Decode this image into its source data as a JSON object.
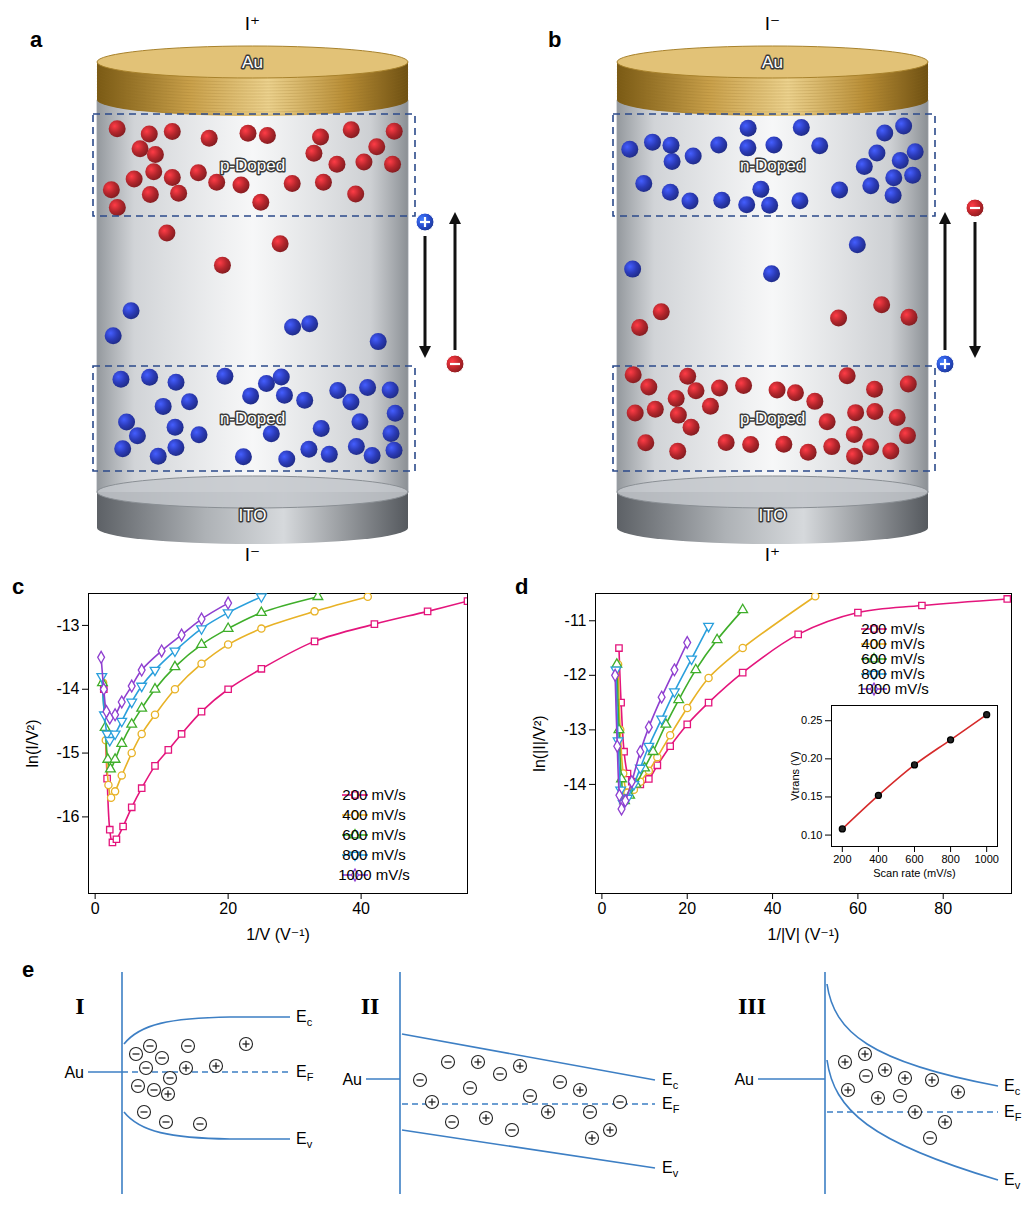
{
  "figure": {
    "a": {
      "label": "a",
      "top_terminal": "I⁺",
      "bottom_terminal": "I⁻",
      "top_electrode": "Au",
      "bottom_electrode": "ITO",
      "top_layer": {
        "text": "p-Doped",
        "color": "#b3262c"
      },
      "bottom_layer": {
        "text": "n-Doped",
        "color": "#2b3bb8"
      }
    },
    "b": {
      "label": "b",
      "top_terminal": "I⁻",
      "bottom_terminal": "I⁺",
      "top_electrode": "Au",
      "bottom_electrode": "ITO",
      "top_layer": {
        "text": "n-Doped",
        "color": "#2b3bb8"
      },
      "bottom_layer": {
        "text": "p-Doped",
        "color": "#b3262c"
      }
    },
    "e": {
      "label": "e",
      "diagrams": [
        {
          "label": "I",
          "metal": "Au",
          "levels": [
            "Ec",
            "EF",
            "Ev"
          ]
        },
        {
          "label": "II",
          "metal": "Au",
          "levels": [
            "Ec",
            "EF",
            "Ev"
          ]
        },
        {
          "label": "III",
          "metal": "Au",
          "levels": [
            "Ec",
            "EF",
            "Ev"
          ]
        }
      ]
    }
  },
  "chart_data": [
    {
      "panel": "c",
      "type": "line",
      "x_label": "1/V (V⁻¹)",
      "y_label": "ln(I/V²)",
      "xlim": [
        -1,
        56
      ],
      "xticks": [
        0,
        20,
        40
      ],
      "ylim": [
        -17.2,
        -12.5
      ],
      "yticks": [
        -16,
        -15,
        -14,
        -13
      ],
      "grid": false,
      "legend": "bottom-right",
      "series": [
        {
          "name": "200 mV/s",
          "color": "#e4157c",
          "marker": "square",
          "x": [
            1.3,
            1.8,
            2.2,
            2.6,
            3.2,
            4.2,
            5.5,
            7,
            9,
            11,
            13,
            16,
            20,
            25,
            33,
            42,
            50,
            56
          ],
          "values": [
            -14.0,
            -15.4,
            -16.2,
            -16.4,
            -16.35,
            -16.15,
            -15.85,
            -15.55,
            -15.2,
            -14.95,
            -14.7,
            -14.35,
            -14.0,
            -13.68,
            -13.25,
            -12.98,
            -12.78,
            -12.62
          ]
        },
        {
          "name": "400 mV/s",
          "color": "#e8b226",
          "marker": "circle",
          "x": [
            1.2,
            1.6,
            2.0,
            2.4,
            3,
            4,
            5.5,
            7,
            9,
            12,
            16,
            20,
            25,
            33,
            41
          ],
          "values": [
            -13.9,
            -14.8,
            -15.5,
            -15.7,
            -15.6,
            -15.35,
            -15.0,
            -14.7,
            -14.4,
            -14.0,
            -13.6,
            -13.3,
            -13.05,
            -12.78,
            -12.55
          ]
        },
        {
          "name": "600 mV/s",
          "color": "#3fae2a",
          "marker": "triangle",
          "x": [
            1.1,
            1.5,
            1.9,
            2.3,
            3,
            4,
            5.5,
            7,
            9,
            12,
            16,
            20,
            25,
            33.5
          ],
          "values": [
            -13.9,
            -14.6,
            -15.1,
            -15.25,
            -15.1,
            -14.85,
            -14.55,
            -14.3,
            -14.0,
            -13.65,
            -13.3,
            -13.05,
            -12.8,
            -12.55
          ]
        },
        {
          "name": "800 mV/s",
          "color": "#2a9fdc",
          "marker": "triangle-down",
          "x": [
            1.0,
            1.4,
            1.8,
            2.2,
            3,
            4,
            5.5,
            7,
            9,
            12,
            16,
            20,
            25
          ],
          "values": [
            -13.8,
            -14.4,
            -14.7,
            -14.8,
            -14.7,
            -14.5,
            -14.2,
            -13.95,
            -13.7,
            -13.4,
            -13.05,
            -12.8,
            -12.55
          ]
        },
        {
          "name": "1000 mV/s",
          "color": "#8f3fd0",
          "marker": "diamond",
          "x": [
            0.9,
            1.3,
            1.7,
            2.2,
            3,
            4,
            5.5,
            7,
            10,
            13,
            16,
            20
          ],
          "values": [
            -13.5,
            -14.0,
            -14.35,
            -14.45,
            -14.4,
            -14.2,
            -13.95,
            -13.7,
            -13.4,
            -13.15,
            -12.9,
            -12.65
          ]
        }
      ]
    },
    {
      "panel": "d",
      "type": "line",
      "x_label": "1/|V| (V⁻¹)",
      "y_label": "ln(|I|/V²)",
      "xlim": [
        -1.5,
        96
      ],
      "xticks": [
        0,
        20,
        40,
        60,
        80
      ],
      "ylim": [
        -16,
        -10.5
      ],
      "yticks": [
        -14,
        -13,
        -12,
        -11
      ],
      "grid": false,
      "legend": "top-right",
      "series": [
        {
          "name": "200 mV/s",
          "color": "#e4157c",
          "marker": "square",
          "x": [
            4.0,
            4.5,
            5.2,
            6,
            7,
            9,
            11,
            13,
            16,
            20,
            25,
            33,
            46,
            60,
            75,
            95
          ],
          "values": [
            -11.5,
            -12.5,
            -13.4,
            -13.8,
            -13.95,
            -14.0,
            -13.9,
            -13.65,
            -13.3,
            -12.9,
            -12.5,
            -11.95,
            -11.25,
            -10.85,
            -10.72,
            -10.6
          ]
        },
        {
          "name": "400 mV/s",
          "color": "#e8b226",
          "marker": "circle",
          "x": [
            3.8,
            4.3,
            5,
            6,
            7.5,
            9,
            11,
            13,
            16,
            20,
            25,
            33,
            50
          ],
          "values": [
            -11.8,
            -13.0,
            -13.8,
            -14.15,
            -14.1,
            -13.95,
            -13.75,
            -13.5,
            -13.1,
            -12.6,
            -12.05,
            -11.5,
            -10.55
          ]
        },
        {
          "name": "600 mV/s",
          "color": "#3fae2a",
          "marker": "triangle",
          "x": [
            3.5,
            4,
            4.6,
            5.3,
            6.5,
            8,
            10,
            12,
            15,
            18,
            22,
            27,
            33
          ],
          "values": [
            -11.8,
            -13.0,
            -13.9,
            -14.3,
            -14.2,
            -14.0,
            -13.7,
            -13.4,
            -12.9,
            -12.45,
            -11.9,
            -11.35,
            -10.8
          ]
        },
        {
          "name": "800 mV/s",
          "color": "#2a9fdc",
          "marker": "triangle-down",
          "x": [
            3.3,
            3.8,
            4.4,
            5,
            6,
            7.5,
            9,
            11,
            14,
            17,
            21,
            25
          ],
          "values": [
            -11.9,
            -13.2,
            -14.1,
            -14.35,
            -14.25,
            -14.0,
            -13.7,
            -13.3,
            -12.8,
            -12.3,
            -11.7,
            -11.1
          ]
        },
        {
          "name": "1000 mV/s",
          "color": "#8f3fd0",
          "marker": "diamond",
          "x": [
            3.1,
            3.6,
            4.1,
            4.6,
            5.5,
            7,
            9,
            11,
            14,
            17,
            20
          ],
          "values": [
            -12.0,
            -13.3,
            -14.2,
            -14.45,
            -14.3,
            -13.95,
            -13.4,
            -12.95,
            -12.4,
            -11.9,
            -11.4
          ]
        }
      ],
      "inset": {
        "type": "line",
        "x_label": "Scan rate (mV/s)",
        "y_label": "Vtrans (V)",
        "xlim": [
          140,
          1060
        ],
        "xticks": [
          200,
          400,
          600,
          800,
          1000
        ],
        "ylim": [
          0.085,
          0.27
        ],
        "yticks": [
          {
            "value": 0.1,
            "label": "0.10"
          },
          0.15,
          {
            "value": 0.2,
            "label": "0.20"
          },
          0.25
        ],
        "grid": false,
        "series": [
          {
            "color": "#d62a2a",
            "marker": "circle",
            "x": [
              200,
              400,
              600,
              800,
              1000
            ],
            "values": [
              0.108,
              0.152,
              0.192,
              0.225,
              0.258
            ]
          }
        ]
      }
    }
  ]
}
